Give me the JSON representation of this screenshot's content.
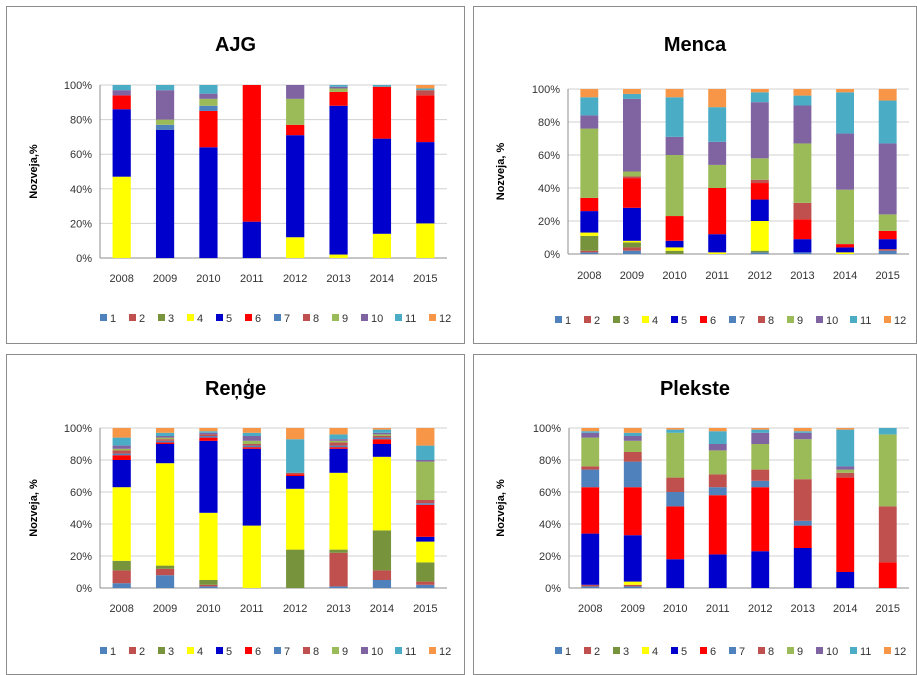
{
  "legend_keys": [
    "1",
    "2",
    "3",
    "4",
    "5",
    "6",
    "7",
    "8",
    "9",
    "10",
    "11",
    "12"
  ],
  "colors": [
    "#4f81bd",
    "#c0504d",
    "#77933c",
    "#ffff00",
    "#0000cc",
    "#ff0000",
    "#4f81bd",
    "#c0504d",
    "#9bbb59",
    "#8064a2",
    "#4bacc6",
    "#f79646"
  ],
  "chart_data": [
    {
      "type": "bar",
      "title": "AJG",
      "ylabel": "Nozveja,%",
      "yticks": [
        "0%",
        "20%",
        "40%",
        "60%",
        "80%",
        "100%"
      ],
      "ylim": [
        0,
        100
      ],
      "categories": [
        "2008",
        "2009",
        "2010",
        "2011",
        "2012",
        "2013",
        "2014",
        "2015"
      ],
      "stacked": true,
      "grid": true,
      "legend_position": "bottom",
      "series": [
        {
          "name": "1",
          "values": [
            0,
            0,
            0,
            0,
            0,
            0,
            0,
            0
          ]
        },
        {
          "name": "2",
          "values": [
            0,
            0,
            0,
            0,
            0,
            0,
            0,
            0
          ]
        },
        {
          "name": "3",
          "values": [
            0,
            0,
            0,
            0,
            0,
            0,
            0,
            0
          ]
        },
        {
          "name": "4",
          "values": [
            47,
            0,
            0,
            0,
            12,
            2,
            14,
            20
          ]
        },
        {
          "name": "5",
          "values": [
            39,
            74,
            64,
            21,
            59,
            86,
            55,
            47
          ]
        },
        {
          "name": "6",
          "values": [
            8,
            0,
            21,
            79,
            6,
            8,
            30,
            27
          ]
        },
        {
          "name": "7",
          "values": [
            0,
            3,
            3,
            0,
            0,
            0,
            0,
            0
          ]
        },
        {
          "name": "8",
          "values": [
            0,
            0,
            0,
            0,
            0,
            0,
            0,
            3
          ]
        },
        {
          "name": "9",
          "values": [
            0,
            3,
            4,
            0,
            15,
            2,
            0,
            0
          ]
        },
        {
          "name": "10",
          "values": [
            3,
            17,
            3,
            0,
            8,
            1,
            0,
            0
          ]
        },
        {
          "name": "11",
          "values": [
            3,
            3,
            5,
            0,
            0,
            1,
            1,
            1
          ]
        },
        {
          "name": "12",
          "values": [
            0,
            0,
            0,
            0,
            0,
            0,
            0,
            2
          ]
        }
      ]
    },
    {
      "type": "bar",
      "title": "Menca",
      "ylabel": "Nozveja, %",
      "yticks": [
        "0%",
        "20%",
        "40%",
        "60%",
        "80%",
        "100%"
      ],
      "ylim": [
        0,
        100
      ],
      "categories": [
        "2008",
        "2009",
        "2010",
        "2011",
        "2012",
        "2013",
        "2014",
        "2015"
      ],
      "stacked": true,
      "grid": true,
      "legend_position": "bottom",
      "series": [
        {
          "name": "1",
          "values": [
            1,
            2,
            0,
            0,
            1,
            1,
            0,
            2
          ]
        },
        {
          "name": "2",
          "values": [
            1,
            2,
            0,
            0,
            0,
            0,
            0,
            1
          ]
        },
        {
          "name": "3",
          "values": [
            9,
            3,
            2,
            0,
            1,
            0,
            0,
            0
          ]
        },
        {
          "name": "4",
          "values": [
            2,
            1,
            2,
            1,
            18,
            0,
            1,
            0
          ]
        },
        {
          "name": "5",
          "values": [
            13,
            20,
            4,
            11,
            13,
            8,
            3,
            6
          ]
        },
        {
          "name": "6",
          "values": [
            8,
            18,
            15,
            28,
            10,
            12,
            2,
            5
          ]
        },
        {
          "name": "7",
          "values": [
            0,
            0,
            0,
            0,
            0,
            0,
            0,
            0
          ]
        },
        {
          "name": "8",
          "values": [
            0,
            1,
            0,
            0,
            2,
            10,
            0,
            0
          ]
        },
        {
          "name": "9",
          "values": [
            42,
            3,
            37,
            14,
            13,
            36,
            33,
            10
          ]
        },
        {
          "name": "10",
          "values": [
            8,
            44,
            11,
            14,
            34,
            23,
            34,
            43
          ]
        },
        {
          "name": "11",
          "values": [
            11,
            3,
            24,
            21,
            6,
            6,
            25,
            26
          ]
        },
        {
          "name": "12",
          "values": [
            5,
            3,
            5,
            11,
            2,
            4,
            2,
            7
          ]
        }
      ]
    },
    {
      "type": "bar",
      "title": "Reņģe",
      "ylabel": "Nozveja, %",
      "yticks": [
        "0%",
        "20%",
        "40%",
        "60%",
        "80%",
        "100%"
      ],
      "ylim": [
        0,
        100
      ],
      "categories": [
        "2008",
        "2009",
        "2010",
        "2011",
        "2012",
        "2013",
        "2014",
        "2015"
      ],
      "stacked": true,
      "grid": true,
      "legend_position": "bottom",
      "series": [
        {
          "name": "1",
          "values": [
            3,
            8,
            1,
            0,
            0,
            1,
            5,
            2
          ]
        },
        {
          "name": "2",
          "values": [
            8,
            4,
            1,
            0,
            0,
            21,
            6,
            2
          ]
        },
        {
          "name": "3",
          "values": [
            6,
            2,
            3,
            0,
            24,
            2,
            25,
            12
          ]
        },
        {
          "name": "4",
          "values": [
            46,
            64,
            42,
            39,
            38,
            48,
            46,
            13
          ]
        },
        {
          "name": "5",
          "values": [
            17,
            12,
            45,
            48,
            8,
            15,
            8,
            3
          ]
        },
        {
          "name": "6",
          "values": [
            3,
            1,
            2,
            1,
            1,
            1,
            3,
            20
          ]
        },
        {
          "name": "7",
          "values": [
            1,
            1,
            1,
            1,
            0,
            1,
            1,
            1
          ]
        },
        {
          "name": "8",
          "values": [
            2,
            1,
            1,
            1,
            1,
            2,
            1,
            2
          ]
        },
        {
          "name": "9",
          "values": [
            1,
            1,
            0,
            2,
            0,
            1,
            1,
            24
          ]
        },
        {
          "name": "10",
          "values": [
            2,
            1,
            1,
            3,
            0,
            1,
            1,
            1
          ]
        },
        {
          "name": "11",
          "values": [
            5,
            2,
            1,
            2,
            21,
            3,
            2,
            9
          ]
        },
        {
          "name": "12",
          "values": [
            6,
            3,
            2,
            3,
            7,
            4,
            1,
            11
          ]
        }
      ]
    },
    {
      "type": "bar",
      "title": "Plekste",
      "ylabel": "Nozveja, %",
      "yticks": [
        "0%",
        "20%",
        "40%",
        "60%",
        "80%",
        "100%"
      ],
      "ylim": [
        0,
        100
      ],
      "categories": [
        "2008",
        "2009",
        "2010",
        "2011",
        "2012",
        "2013",
        "2014",
        "2015"
      ],
      "stacked": true,
      "grid": true,
      "legend_position": "bottom",
      "series": [
        {
          "name": "1",
          "values": [
            1,
            1,
            0,
            0,
            0,
            0,
            0,
            0
          ]
        },
        {
          "name": "2",
          "values": [
            1,
            1,
            0,
            0,
            0,
            0,
            0,
            0
          ]
        },
        {
          "name": "3",
          "values": [
            0,
            0,
            0,
            0,
            0,
            0,
            0,
            0
          ]
        },
        {
          "name": "4",
          "values": [
            0,
            2,
            0,
            0,
            0,
            0,
            0,
            0
          ]
        },
        {
          "name": "5",
          "values": [
            32,
            29,
            18,
            21,
            23,
            25,
            10,
            0
          ]
        },
        {
          "name": "6",
          "values": [
            29,
            30,
            33,
            37,
            40,
            14,
            59,
            16
          ]
        },
        {
          "name": "7",
          "values": [
            11,
            16,
            9,
            5,
            4,
            3,
            0,
            0
          ]
        },
        {
          "name": "8",
          "values": [
            2,
            6,
            9,
            8,
            7,
            26,
            3,
            35
          ]
        },
        {
          "name": "9",
          "values": [
            18,
            7,
            28,
            15,
            16,
            25,
            2,
            45
          ]
        },
        {
          "name": "10",
          "values": [
            3,
            3,
            0,
            4,
            7,
            4,
            2,
            0
          ]
        },
        {
          "name": "11",
          "values": [
            1,
            2,
            2,
            8,
            2,
            1,
            23,
            4
          ]
        },
        {
          "name": "12",
          "values": [
            2,
            3,
            1,
            2,
            1,
            2,
            1,
            0
          ]
        }
      ]
    }
  ]
}
